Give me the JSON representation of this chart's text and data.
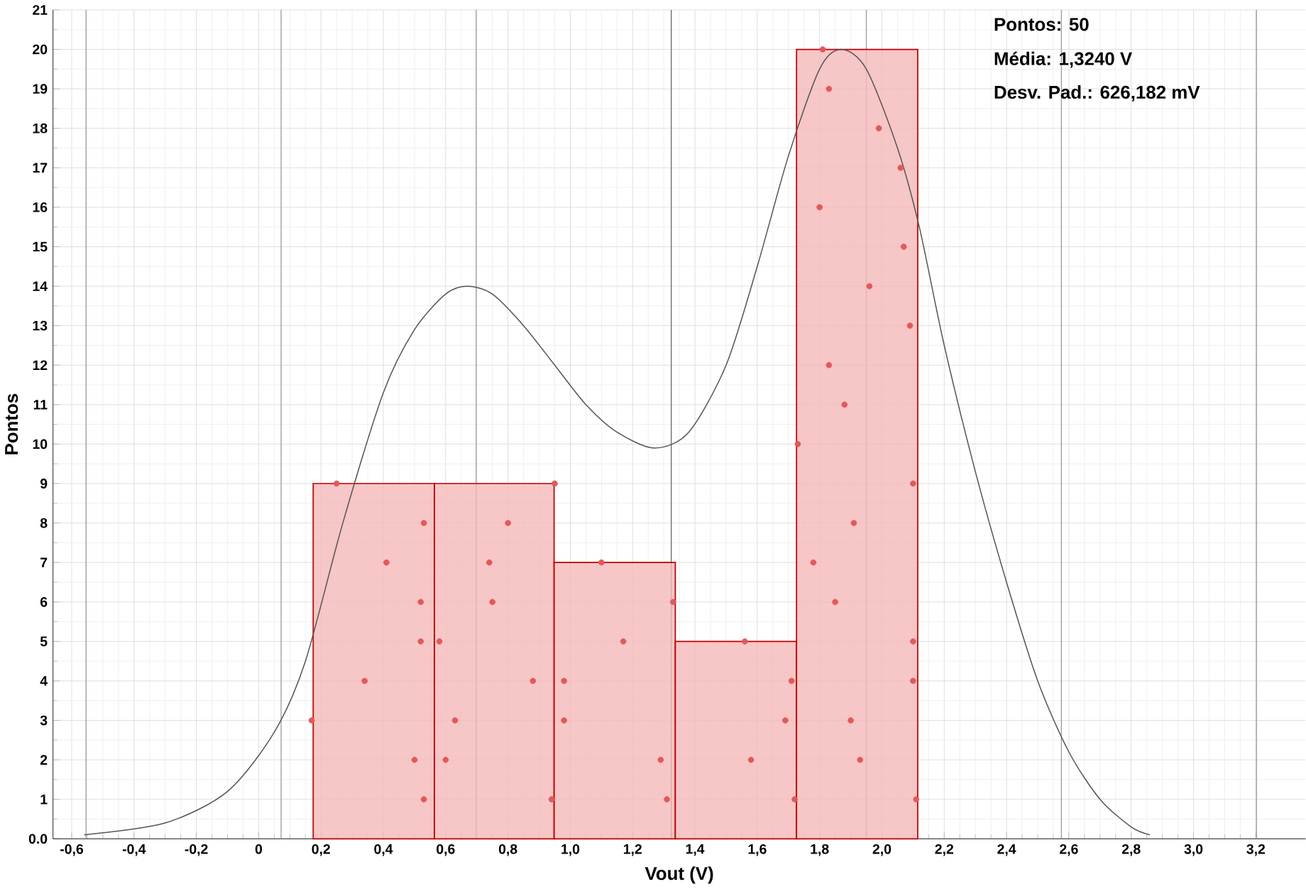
{
  "chart_data": {
    "type": "histogram",
    "xlabel": "Vout (V)",
    "ylabel": "Pontos",
    "series": [
      {
        "color": "#f5b8b8",
        "bins": [
          0.175,
          0.564,
          0.948,
          1.337,
          1.726,
          2.115
        ],
        "values": [
          9,
          9,
          7,
          5,
          20
        ]
      },
      {
        "type": "line",
        "color": "#555555",
        "x": [
          -0.56,
          -0.3,
          -0.1,
          0.05,
          0.15,
          0.27,
          0.4,
          0.5,
          0.6,
          0.67,
          0.75,
          0.85,
          0.95,
          1.05,
          1.15,
          1.27,
          1.38,
          1.5,
          1.6,
          1.7,
          1.8,
          1.87,
          1.95,
          2.05,
          2.12,
          2.2,
          2.3,
          2.4,
          2.5,
          2.6,
          2.7,
          2.8,
          2.86
        ],
        "values": [
          0.1,
          0.4,
          1.2,
          2.7,
          4.5,
          8,
          11.3,
          12.9,
          13.8,
          14.0,
          13.8,
          13.0,
          12.0,
          11,
          10.3,
          9.9,
          10.3,
          12,
          14.5,
          17.3,
          19.5,
          20.0,
          19.5,
          17.5,
          15.5,
          12.5,
          9.3,
          6.5,
          4,
          2.2,
          1.0,
          0.3,
          0.1
        ]
      },
      {
        "type": "scatter",
        "color": "#e05a5a",
        "x": [
          0.25,
          0.53,
          0.41,
          0.52,
          0.52,
          0.34,
          0.17,
          0.5,
          0.53,
          0.95,
          0.8,
          0.74,
          0.75,
          0.58,
          0.88,
          0.63,
          0.6,
          0.94,
          1.1,
          1.33,
          1.17,
          0.98,
          0.98,
          1.29,
          1.31,
          1.56,
          1.71,
          1.69,
          1.58,
          1.72,
          1.81,
          1.83,
          1.99,
          2.06,
          1.8,
          2.07,
          1.96,
          2.09,
          1.83,
          1.88,
          1.73,
          2.1,
          1.91,
          1.78,
          1.85,
          2.1,
          2.1,
          1.9,
          1.93,
          2.11
        ],
        "values": [
          9,
          8,
          7,
          6,
          5,
          4,
          3,
          2,
          1,
          9,
          8,
          7,
          6,
          5,
          4,
          3,
          2,
          1,
          7,
          6,
          5,
          4,
          3,
          2,
          1,
          5,
          4,
          3,
          2,
          1,
          20,
          19,
          18,
          17,
          16,
          15,
          14,
          13,
          12,
          11,
          10,
          9,
          8,
          7,
          6,
          5,
          4,
          3,
          2,
          1
        ]
      }
    ],
    "xlim": [
      -0.66,
      3.36
    ],
    "ylim": [
      0,
      21
    ],
    "xticks": [
      {
        "value": -0.6,
        "label": "-0,6"
      },
      {
        "value": -0.4,
        "label": "-0,4"
      },
      {
        "value": -0.2,
        "label": "-0,2"
      },
      0,
      {
        "value": 0.2,
        "label": "0,2"
      },
      {
        "value": 0.4,
        "label": "0,4"
      },
      {
        "value": 0.6,
        "label": "0,6"
      },
      {
        "value": 0.8,
        "label": "0,8"
      },
      {
        "value": 1.0,
        "label": "1,0"
      },
      {
        "value": 1.2,
        "label": "1,2"
      },
      {
        "value": 1.4,
        "label": "1,4"
      },
      {
        "value": 1.6,
        "label": "1,6"
      },
      {
        "value": 1.8,
        "label": "1,8"
      },
      {
        "value": 2.0,
        "label": "2,0"
      },
      {
        "value": 2.2,
        "label": "2,2"
      },
      {
        "value": 2.4,
        "label": "2,4"
      },
      {
        "value": 2.6,
        "label": "2,6"
      },
      {
        "value": 2.8,
        "label": "2,8"
      },
      {
        "value": 3.0,
        "label": "3,0"
      },
      {
        "value": 3.2,
        "label": "3,2"
      }
    ],
    "yticks": [
      {
        "value": 0,
        "label": "0.0"
      },
      1,
      2,
      3,
      4,
      5,
      6,
      7,
      8,
      9,
      10,
      11,
      12,
      13,
      14,
      15,
      16,
      17,
      18,
      19,
      20,
      21
    ],
    "ref_lines": [
      {
        "axis": "x",
        "value": -0.554,
        "color": "#999999"
      },
      {
        "axis": "x",
        "value": 0.072,
        "color": "#999999"
      },
      {
        "axis": "x",
        "value": 0.698,
        "color": "#999999"
      },
      {
        "axis": "x",
        "value": 1.324,
        "color": "#666666"
      },
      {
        "axis": "x",
        "value": 1.95,
        "color": "#999999"
      },
      {
        "axis": "x",
        "value": 2.576,
        "color": "#999999"
      },
      {
        "axis": "x",
        "value": 3.202,
        "color": "#999999"
      }
    ],
    "grid": true,
    "annotations": [
      "Pontos: 50",
      "Média: 1,3240 V",
      "Desv. Pad.: 626,182 mV"
    ]
  }
}
